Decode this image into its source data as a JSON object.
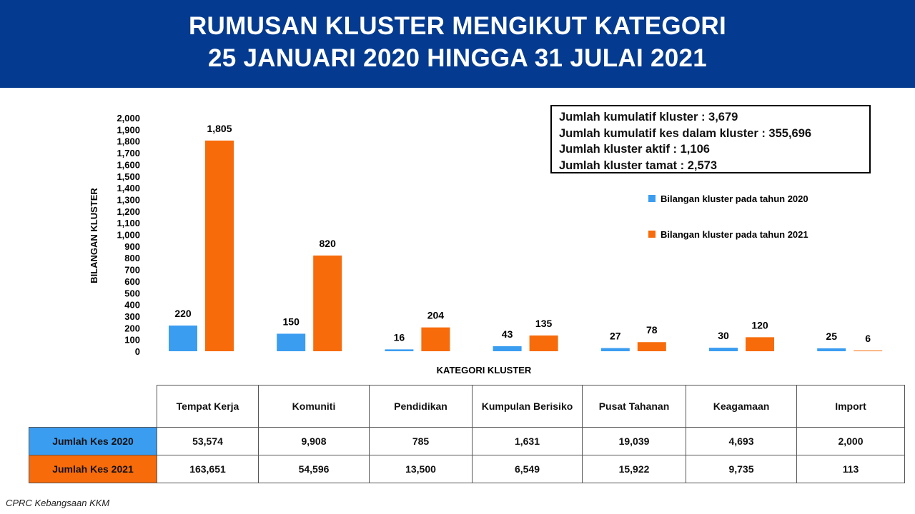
{
  "header": {
    "title_line1": "RUMUSAN KLUSTER MENGIKUT KATEGORI",
    "title_line2": "25 JANUARI 2020 HINGGA 31 JULAI 2021"
  },
  "summary": {
    "line1": "Jumlah kumulatif kluster : 3,679",
    "line2": "Jumlah kumulatif kes dalam kluster : 355,696",
    "line3": "Jumlah kluster aktif : 1,106",
    "line4": "Jumlah kluster tamat : 2,573"
  },
  "colors": {
    "header_bg": "#043a8f",
    "series_2020": "#3b9df0",
    "series_2021": "#f76b0a"
  },
  "chart_data": {
    "type": "bar",
    "categories": [
      "Tempat Kerja",
      "Komuniti",
      "Pendidikan",
      "Kumpulan Berisiko",
      "Pusat Tahanan",
      "Keagamaan",
      "Import"
    ],
    "series": [
      {
        "name": "Bilangan kluster pada tahun 2020",
        "values": [
          220,
          150,
          16,
          43,
          27,
          30,
          25
        ],
        "color": "#3b9df0"
      },
      {
        "name": "Bilangan kluster pada tahun 2021",
        "values": [
          1805,
          820,
          204,
          135,
          78,
          120,
          6
        ],
        "color": "#f76b0a"
      }
    ],
    "xlabel": "KATEGORI KLUSTER",
    "ylabel": "BILANGAN KLUSTER",
    "ylim": [
      0,
      2000
    ],
    "yticks": [
      0,
      100,
      200,
      300,
      400,
      500,
      600,
      700,
      800,
      900,
      1000,
      1100,
      1200,
      1300,
      1400,
      1500,
      1600,
      1700,
      1800,
      1900,
      2000
    ],
    "ytick_labels": [
      "0",
      "100",
      "200",
      "300",
      "400",
      "500",
      "600",
      "700",
      "800",
      "900",
      "1,000",
      "1,100",
      "1,200",
      "1,300",
      "1,400",
      "1,500",
      "1,600",
      "1,700",
      "1,800",
      "1,900",
      "2,000"
    ],
    "grid": false,
    "legend_position": "right"
  },
  "table": {
    "columns": [
      "Tempat Kerja",
      "Komuniti",
      "Pendidikan",
      "Kumpulan Berisiko",
      "Pusat Tahanan",
      "Keagamaan",
      "Import"
    ],
    "rows": [
      {
        "label": "Jumlah Kes 2020",
        "values": [
          "53,574",
          "9,908",
          "785",
          "1,631",
          "19,039",
          "4,693",
          "2,000"
        ]
      },
      {
        "label": "Jumlah Kes 2021",
        "values": [
          "163,651",
          "54,596",
          "13,500",
          "6,549",
          "15,922",
          "9,735",
          "113"
        ]
      }
    ]
  },
  "source": "CPRC Kebangsaan KKM"
}
